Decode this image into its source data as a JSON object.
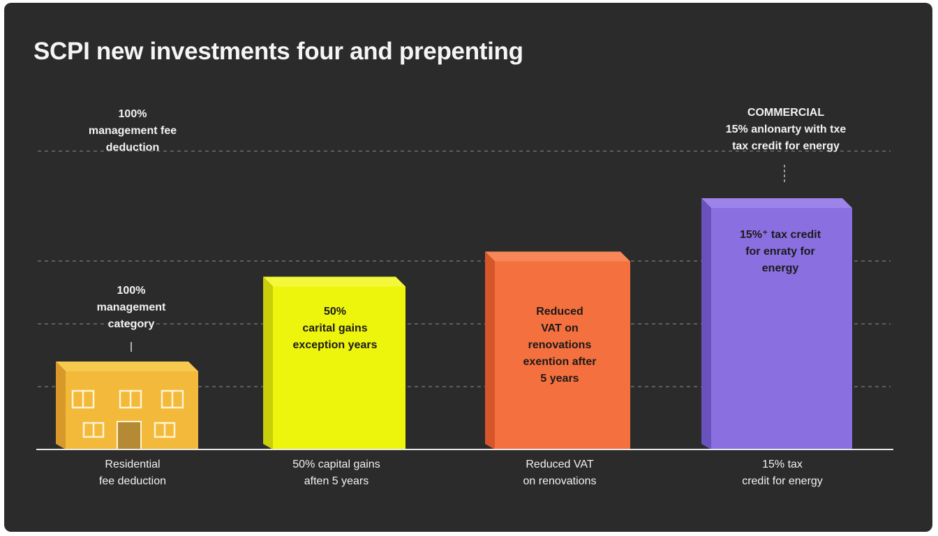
{
  "chart_data": {
    "type": "bar",
    "title": "SCPI new investments four and prepenting",
    "categories": [
      "Residential\nfee deduction",
      "50% capital gains\naften 5 years",
      "Reduced VAT\non renovations",
      "15% tax\ncredit for energy"
    ],
    "values": [
      28,
      55,
      63,
      80
    ],
    "ylim": [
      0,
      100
    ],
    "grid": true,
    "bar_labels": [
      "",
      "50%\ncarital gains\nexception years",
      "Reduced\nVAT on\nrenovations\nexention after\n5 years",
      "15%⁺ tax credit\nfor enraty for\nenergy"
    ],
    "annotations": [
      {
        "text": "100%\nmanagement fee\ndeduction",
        "heading": ""
      },
      {
        "text": "100%\nmanagement\ncategory",
        "heading": ""
      },
      {
        "heading": "COMMERCIAL",
        "text": "15% anlonarty with txe\ntax credit for energy"
      }
    ],
    "colors": [
      "#f3b93a",
      "#eef50d",
      "#f5703f",
      "#8a6fe0"
    ],
    "colors_dark": [
      "#d9992a",
      "#c9cf08",
      "#d6552a",
      "#6a52bd"
    ],
    "colors_top": [
      "#f7c94f",
      "#f4f83a",
      "#f78757",
      "#9d84ea"
    ]
  }
}
